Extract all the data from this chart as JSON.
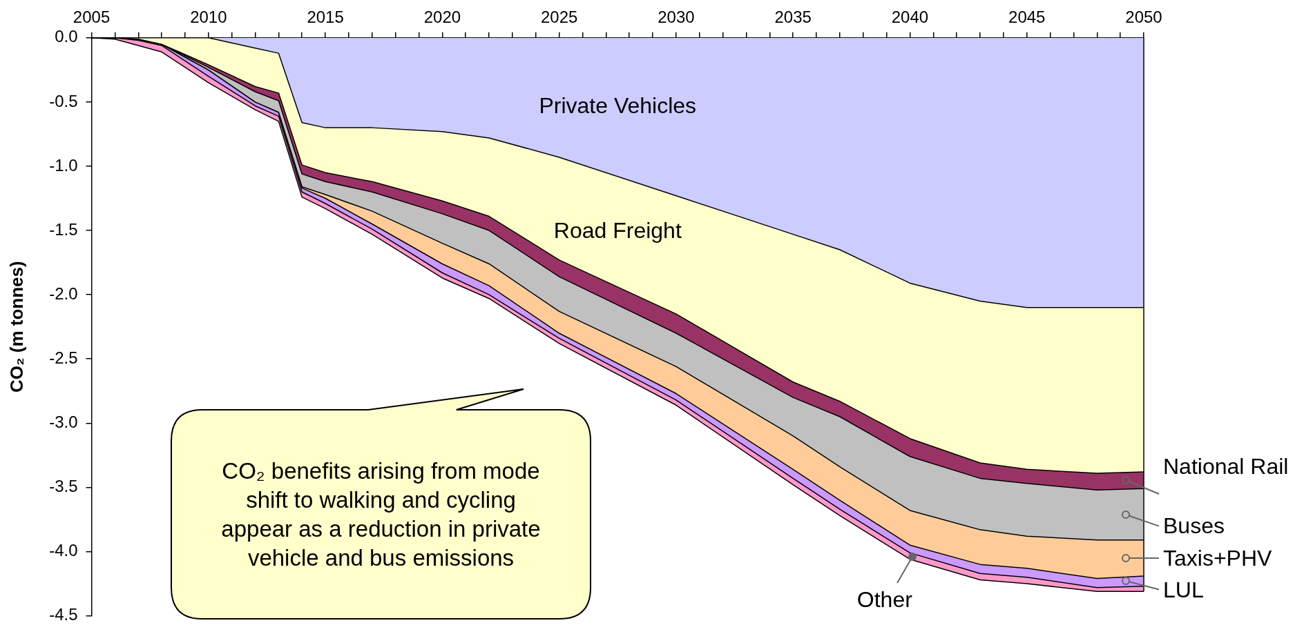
{
  "chart_data": {
    "type": "area",
    "stacked": true,
    "grid": false,
    "legend": "right",
    "ylabel": "CO₂ (m tonnes)",
    "x": [
      2005,
      2006,
      2007,
      2008,
      2010,
      2012,
      2013,
      2014,
      2015,
      2017,
      2020,
      2022,
      2025,
      2030,
      2035,
      2037,
      2040,
      2043,
      2045,
      2048,
      2050
    ],
    "xlim": [
      2005,
      2050
    ],
    "xticks": [
      2005,
      {
        "value": 2006,
        "label": null
      },
      {
        "value": 2007,
        "label": null
      },
      {
        "value": 2008,
        "label": null
      },
      {
        "value": 2009,
        "label": null
      },
      2010,
      {
        "value": 2011,
        "label": null
      },
      {
        "value": 2012,
        "label": null
      },
      {
        "value": 2013,
        "label": null
      },
      {
        "value": 2014,
        "label": null
      },
      2015,
      {
        "value": 2016,
        "label": null
      },
      {
        "value": 2017,
        "label": null
      },
      {
        "value": 2018,
        "label": null
      },
      {
        "value": 2019,
        "label": null
      },
      2020,
      {
        "value": 2021,
        "label": null
      },
      {
        "value": 2022,
        "label": null
      },
      {
        "value": 2023,
        "label": null
      },
      {
        "value": 2024,
        "label": null
      },
      2025,
      {
        "value": 2026,
        "label": null
      },
      {
        "value": 2027,
        "label": null
      },
      {
        "value": 2028,
        "label": null
      },
      {
        "value": 2029,
        "label": null
      },
      2030,
      {
        "value": 2031,
        "label": null
      },
      {
        "value": 2032,
        "label": null
      },
      {
        "value": 2033,
        "label": null
      },
      {
        "value": 2034,
        "label": null
      },
      2035,
      {
        "value": 2036,
        "label": null
      },
      {
        "value": 2037,
        "label": null
      },
      {
        "value": 2038,
        "label": null
      },
      {
        "value": 2039,
        "label": null
      },
      2040,
      {
        "value": 2041,
        "label": null
      },
      {
        "value": 2042,
        "label": null
      },
      {
        "value": 2043,
        "label": null
      },
      {
        "value": 2044,
        "label": null
      },
      2045,
      {
        "value": 2046,
        "label": null
      },
      {
        "value": 2047,
        "label": null
      },
      {
        "value": 2048,
        "label": null
      },
      {
        "value": 2049,
        "label": null
      },
      2050
    ],
    "ylim": [
      -4.5,
      0
    ],
    "yticks": [
      {
        "value": 0,
        "label": "0.0"
      },
      {
        "value": -0.5,
        "label": "-0.5"
      },
      {
        "value": -1,
        "label": "-1.0"
      },
      {
        "value": -1.5,
        "label": "-1.5"
      },
      {
        "value": -2,
        "label": "-2.0"
      },
      {
        "value": -2.5,
        "label": "-2.5"
      },
      {
        "value": -3,
        "label": "-3.0"
      },
      {
        "value": -3.5,
        "label": "-3.5"
      },
      {
        "value": -4,
        "label": "-4.0"
      },
      {
        "value": -4.5,
        "label": "-4.5"
      }
    ],
    "series": [
      {
        "name": "Private Vehicles",
        "color": "#ccccff",
        "values": [
          0,
          0,
          0,
          0,
          0,
          -0.08,
          -0.12,
          -0.66,
          -0.7,
          -0.7,
          -0.73,
          -0.78,
          -0.93,
          -1.23,
          -1.53,
          -1.65,
          -1.91,
          -2.05,
          -2.1,
          -2.1,
          -2.1
        ]
      },
      {
        "name": "Road Freight",
        "color": "#ffffcc",
        "values": [
          0,
          0,
          -0.01,
          -0.05,
          -0.21,
          -0.3,
          -0.31,
          -0.33,
          -0.35,
          -0.42,
          -0.54,
          -0.61,
          -0.8,
          -0.92,
          -1.15,
          -1.18,
          -1.21,
          -1.26,
          -1.26,
          -1.29,
          -1.28
        ]
      },
      {
        "name": "National Rail",
        "color": "#993366",
        "values": [
          0,
          0,
          0,
          0,
          -0.02,
          -0.04,
          -0.06,
          -0.07,
          -0.07,
          -0.08,
          -0.1,
          -0.11,
          -0.13,
          -0.15,
          -0.12,
          -0.12,
          -0.14,
          -0.12,
          -0.11,
          -0.13,
          -0.13
        ]
      },
      {
        "name": "Buses",
        "color": "#c0c0c0",
        "values": [
          0,
          0,
          0,
          0,
          -0.02,
          -0.08,
          -0.09,
          -0.1,
          -0.1,
          -0.15,
          -0.23,
          -0.26,
          -0.27,
          -0.26,
          -0.3,
          -0.39,
          -0.42,
          -0.4,
          -0.41,
          -0.39,
          -0.4
        ]
      },
      {
        "name": "Taxis+PHV",
        "color": "#ffcc99",
        "values": [
          0,
          0,
          0,
          0,
          0,
          0,
          0,
          -0.01,
          -0.03,
          -0.1,
          -0.16,
          -0.17,
          -0.17,
          -0.21,
          -0.26,
          -0.26,
          -0.27,
          -0.27,
          -0.25,
          -0.3,
          -0.28
        ]
      },
      {
        "name": "LUL",
        "color": "#cc99ff",
        "values": [
          0,
          0,
          -0.01,
          -0.01,
          -0.05,
          -0.03,
          -0.03,
          -0.03,
          -0.04,
          -0.04,
          -0.07,
          -0.07,
          -0.04,
          -0.05,
          -0.07,
          -0.07,
          -0.06,
          -0.07,
          -0.07,
          -0.07,
          -0.08
        ]
      },
      {
        "name": "Other",
        "color": "#ff99cc",
        "values": [
          0,
          -0.01,
          -0.04,
          -0.05,
          -0.05,
          -0.03,
          -0.04,
          -0.04,
          -0.04,
          -0.04,
          -0.04,
          -0.03,
          -0.04,
          -0.04,
          -0.05,
          -0.05,
          -0.05,
          -0.05,
          -0.05,
          -0.03,
          -0.04
        ]
      }
    ],
    "annotations": [
      "CO₂ benefits arising from mode shift to walking and cycling appear as a reduction in private vehicle and bus emissions"
    ]
  }
}
